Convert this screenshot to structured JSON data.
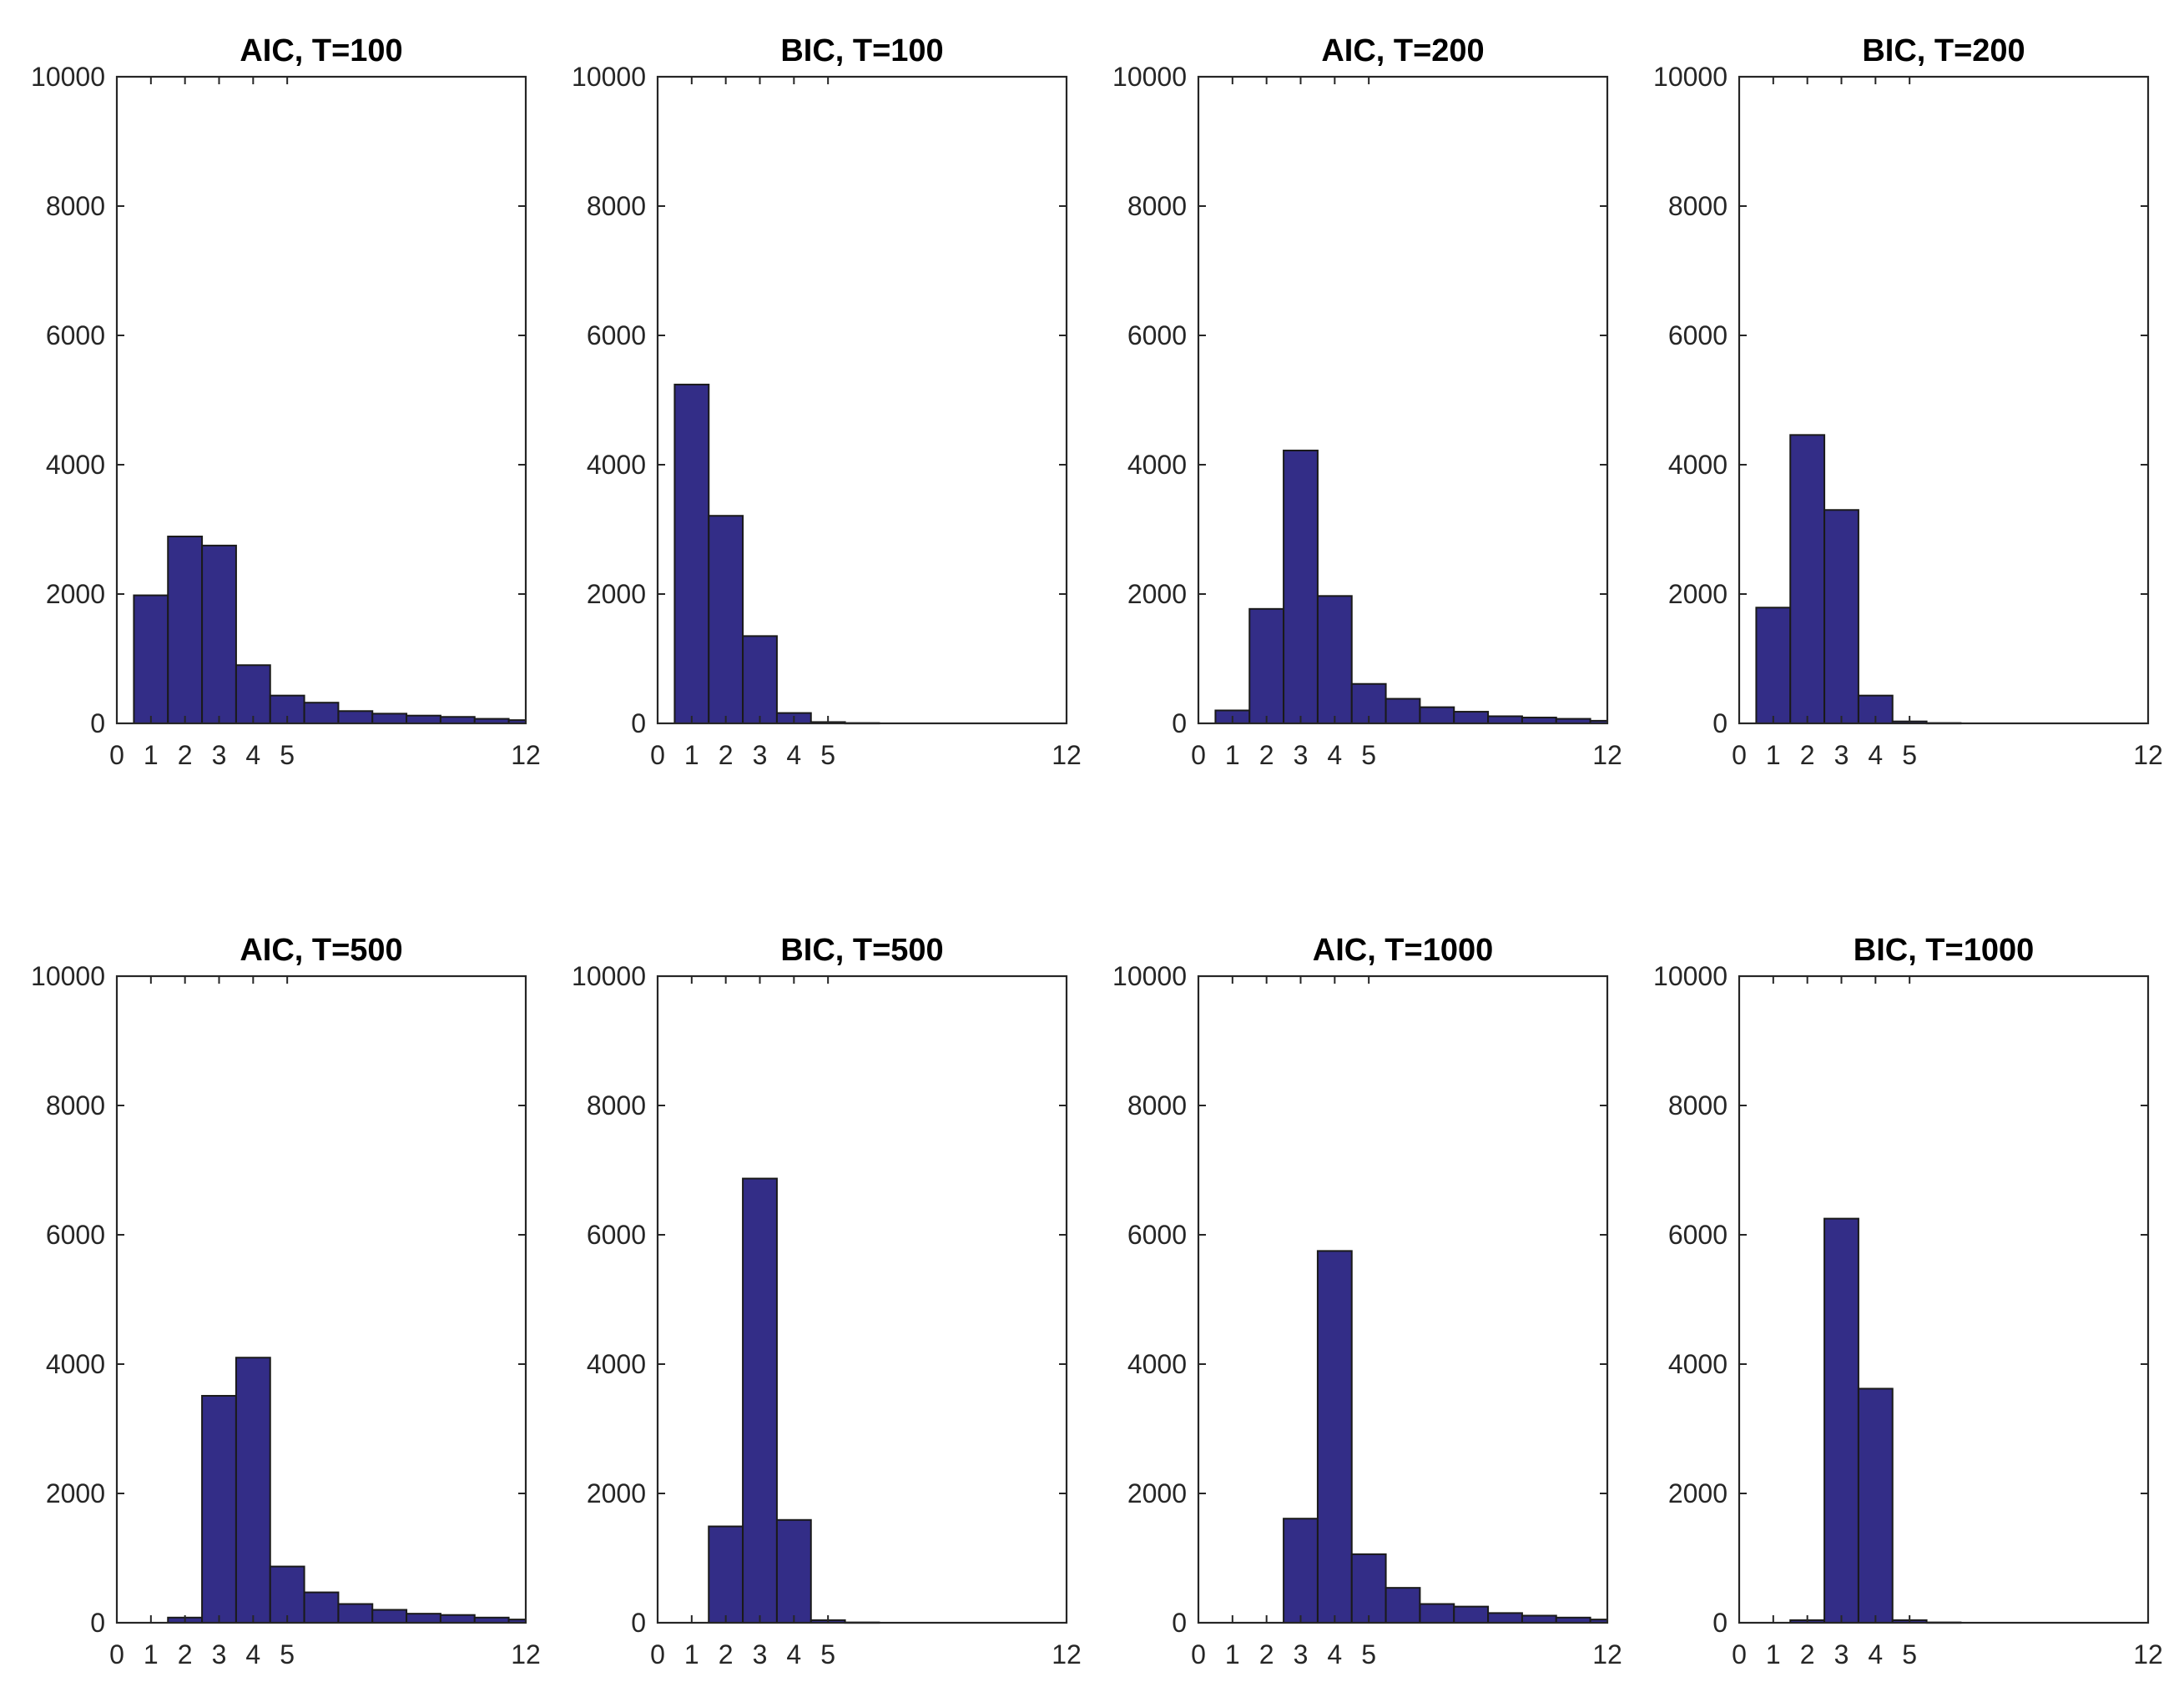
{
  "bar_color": "#332d87",
  "chart_data": [
    {
      "type": "bar",
      "title": "AIC, T=100",
      "categories": [
        0,
        1,
        2,
        3,
        4,
        5,
        6,
        7,
        8,
        9,
        10,
        11,
        12
      ],
      "values": [
        0,
        1980,
        2890,
        2750,
        900,
        430,
        320,
        190,
        150,
        120,
        100,
        70,
        50
      ],
      "xticks": [
        "0",
        "1",
        "2",
        "3",
        "4",
        "5",
        "12"
      ],
      "yticks": [
        "0",
        "2000",
        "4000",
        "6000",
        "8000",
        "10000"
      ],
      "xlim": [
        0,
        12
      ],
      "ylim": [
        0,
        10000
      ],
      "xlabel": "",
      "ylabel": ""
    },
    {
      "type": "bar",
      "title": "BIC, T=100",
      "categories": [
        0,
        1,
        2,
        3,
        4,
        5,
        6,
        7,
        8,
        9,
        10,
        11,
        12
      ],
      "values": [
        0,
        5240,
        3210,
        1350,
        160,
        20,
        5,
        0,
        0,
        0,
        0,
        0,
        0
      ],
      "xticks": [
        "0",
        "1",
        "2",
        "3",
        "4",
        "5",
        "12"
      ],
      "yticks": [
        "0",
        "2000",
        "4000",
        "6000",
        "8000",
        "10000"
      ],
      "xlim": [
        0,
        12
      ],
      "ylim": [
        0,
        10000
      ],
      "xlabel": "",
      "ylabel": ""
    },
    {
      "type": "bar",
      "title": "AIC, T=200",
      "categories": [
        0,
        1,
        2,
        3,
        4,
        5,
        6,
        7,
        8,
        9,
        10,
        11,
        12
      ],
      "values": [
        0,
        200,
        1770,
        4220,
        1970,
        610,
        380,
        250,
        180,
        110,
        90,
        70,
        40
      ],
      "xticks": [
        "0",
        "1",
        "2",
        "3",
        "4",
        "5",
        "12"
      ],
      "yticks": [
        "0",
        "2000",
        "4000",
        "6000",
        "8000",
        "10000"
      ],
      "xlim": [
        0,
        12
      ],
      "ylim": [
        0,
        10000
      ],
      "xlabel": "",
      "ylabel": ""
    },
    {
      "type": "bar",
      "title": "BIC, T=200",
      "categories": [
        0,
        1,
        2,
        3,
        4,
        5,
        6,
        7,
        8,
        9,
        10,
        11,
        12
      ],
      "values": [
        0,
        1790,
        4460,
        3300,
        430,
        30,
        5,
        0,
        0,
        0,
        0,
        0,
        0
      ],
      "xticks": [
        "0",
        "1",
        "2",
        "3",
        "4",
        "5",
        "12"
      ],
      "yticks": [
        "0",
        "2000",
        "4000",
        "6000",
        "8000",
        "10000"
      ],
      "xlim": [
        0,
        12
      ],
      "ylim": [
        0,
        10000
      ],
      "xlabel": "",
      "ylabel": ""
    },
    {
      "type": "bar",
      "title": "AIC, T=500",
      "categories": [
        0,
        1,
        2,
        3,
        4,
        5,
        6,
        7,
        8,
        9,
        10,
        11,
        12
      ],
      "values": [
        0,
        0,
        80,
        3510,
        4100,
        870,
        470,
        290,
        200,
        140,
        120,
        80,
        50
      ],
      "xticks": [
        "0",
        "1",
        "2",
        "3",
        "4",
        "5",
        "12"
      ],
      "yticks": [
        "0",
        "2000",
        "4000",
        "6000",
        "8000",
        "10000"
      ],
      "xlim": [
        0,
        12
      ],
      "ylim": [
        0,
        10000
      ],
      "xlabel": "",
      "ylabel": ""
    },
    {
      "type": "bar",
      "title": "BIC, T=500",
      "categories": [
        0,
        1,
        2,
        3,
        4,
        5,
        6,
        7,
        8,
        9,
        10,
        11,
        12
      ],
      "values": [
        0,
        0,
        1490,
        6870,
        1590,
        40,
        5,
        0,
        0,
        0,
        0,
        0,
        0
      ],
      "xticks": [
        "0",
        "1",
        "2",
        "3",
        "4",
        "5",
        "12"
      ],
      "yticks": [
        "0",
        "2000",
        "4000",
        "6000",
        "8000",
        "10000"
      ],
      "xlim": [
        0,
        12
      ],
      "ylim": [
        0,
        10000
      ],
      "xlabel": "",
      "ylabel": ""
    },
    {
      "type": "bar",
      "title": "AIC, T=1000",
      "categories": [
        0,
        1,
        2,
        3,
        4,
        5,
        6,
        7,
        8,
        9,
        10,
        11,
        12
      ],
      "values": [
        0,
        0,
        0,
        1610,
        5750,
        1060,
        540,
        290,
        250,
        150,
        110,
        80,
        50
      ],
      "xticks": [
        "0",
        "1",
        "2",
        "3",
        "4",
        "5",
        "12"
      ],
      "yticks": [
        "0",
        "2000",
        "4000",
        "6000",
        "8000",
        "10000"
      ],
      "xlim": [
        0,
        12
      ],
      "ylim": [
        0,
        10000
      ],
      "xlabel": "",
      "ylabel": ""
    },
    {
      "type": "bar",
      "title": "BIC, T=1000",
      "categories": [
        0,
        1,
        2,
        3,
        4,
        5,
        6,
        7,
        8,
        9,
        10,
        11,
        12
      ],
      "values": [
        0,
        0,
        40,
        6250,
        3620,
        40,
        5,
        0,
        0,
        0,
        0,
        0,
        0
      ],
      "xticks": [
        "0",
        "1",
        "2",
        "3",
        "4",
        "5",
        "12"
      ],
      "yticks": [
        "0",
        "2000",
        "4000",
        "6000",
        "8000",
        "10000"
      ],
      "xlim": [
        0,
        12
      ],
      "ylim": [
        0,
        10000
      ],
      "xlabel": "",
      "ylabel": ""
    }
  ]
}
